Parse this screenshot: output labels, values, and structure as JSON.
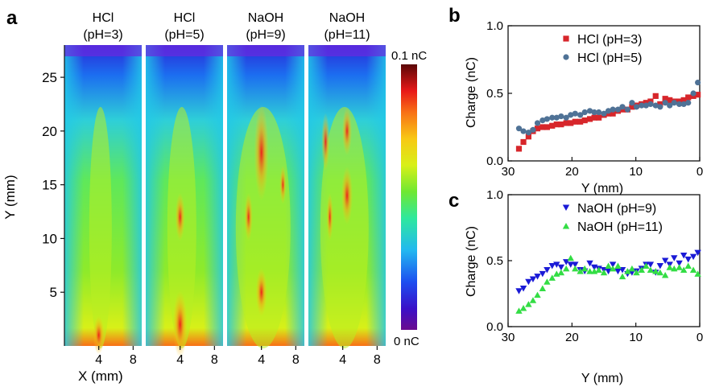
{
  "panel_labels": {
    "a": "a",
    "b": "b",
    "c": "c"
  },
  "panel_a": {
    "maps": [
      {
        "line1": "HCl",
        "line2": "(pH=3)"
      },
      {
        "line1": "HCl",
        "line2": "(pH=5)"
      },
      {
        "line1": "NaOH",
        "line2": "(pH=9)"
      },
      {
        "line1": "NaOH",
        "line2": "(pH=11)"
      }
    ],
    "ylabel": "Y (mm)",
    "xlabel": "X (mm)",
    "yticks": [
      5,
      10,
      15,
      20,
      25
    ],
    "xticks": [
      4,
      8
    ],
    "ylim": [
      0,
      28
    ],
    "xlim": [
      0,
      9
    ],
    "colorbar": {
      "max_label": "0.1 nC",
      "min_label": "0 nC",
      "range": [
        0,
        0.1
      ]
    }
  },
  "colors": {
    "hcl3": "#d7262b",
    "hcl5": "#4f7296",
    "naoh9": "#1a1ad6",
    "naoh11": "#33dd44"
  },
  "chart_data": [
    {
      "panel": "b",
      "type": "scatter",
      "xlabel": "Y (mm)",
      "ylabel": "Charge (nC)",
      "xlim": [
        30,
        0
      ],
      "ylim": [
        0,
        1.0
      ],
      "xticks": [
        30,
        20,
        10,
        0
      ],
      "yticks": [
        "0.0",
        "0.5",
        "1.0"
      ],
      "legend_position": "top-right",
      "series": [
        {
          "name": "HCl (pH=3)",
          "marker": "square",
          "color": "#d7262b",
          "x": [
            28.3,
            27.6,
            26.8,
            26.1,
            25.4,
            24.6,
            23.9,
            23.1,
            22.4,
            21.7,
            20.9,
            20.2,
            19.5,
            18.7,
            18.0,
            17.2,
            16.5,
            15.8,
            15.0,
            14.3,
            13.6,
            12.8,
            12.1,
            11.3,
            10.6,
            9.9,
            9.1,
            8.4,
            7.7,
            6.9,
            6.2,
            5.4,
            4.7,
            4.0,
            3.2,
            2.5,
            1.8,
            1.0,
            0.3
          ],
          "y": [
            0.09,
            0.14,
            0.18,
            0.22,
            0.24,
            0.25,
            0.25,
            0.26,
            0.27,
            0.27,
            0.28,
            0.28,
            0.29,
            0.29,
            0.3,
            0.31,
            0.32,
            0.32,
            0.34,
            0.35,
            0.35,
            0.37,
            0.38,
            0.38,
            0.4,
            0.41,
            0.42,
            0.43,
            0.44,
            0.48,
            0.42,
            0.46,
            0.45,
            0.44,
            0.44,
            0.45,
            0.47,
            0.48,
            0.49
          ]
        },
        {
          "name": "HCl (pH=5)",
          "marker": "circle",
          "color": "#4f7296",
          "x": [
            28.3,
            27.6,
            26.8,
            26.1,
            25.4,
            24.6,
            23.9,
            23.1,
            22.4,
            21.7,
            20.9,
            20.2,
            19.5,
            18.7,
            18.0,
            17.2,
            16.5,
            15.8,
            15.0,
            14.3,
            13.6,
            12.8,
            12.1,
            11.3,
            10.6,
            9.9,
            9.1,
            8.4,
            7.7,
            6.9,
            6.2,
            5.4,
            4.7,
            4.0,
            3.2,
            2.5,
            1.8,
            1.0,
            0.3
          ],
          "y": [
            0.24,
            0.22,
            0.21,
            0.23,
            0.28,
            0.3,
            0.31,
            0.32,
            0.32,
            0.33,
            0.32,
            0.34,
            0.35,
            0.34,
            0.36,
            0.37,
            0.36,
            0.36,
            0.35,
            0.37,
            0.38,
            0.38,
            0.4,
            0.38,
            0.43,
            0.4,
            0.41,
            0.41,
            0.42,
            0.41,
            0.4,
            0.43,
            0.41,
            0.43,
            0.42,
            0.42,
            0.43,
            0.5,
            0.58
          ]
        }
      ]
    },
    {
      "panel": "c",
      "type": "scatter",
      "xlabel": "Y (mm)",
      "ylabel": "Charge (nC)",
      "xlim": [
        30,
        0
      ],
      "ylim": [
        0,
        1.0
      ],
      "xticks": [
        30,
        20,
        10,
        0
      ],
      "yticks": [
        "0.0",
        "0.5",
        "1.0"
      ],
      "legend_position": "top-right",
      "series": [
        {
          "name": "NaOH (pH=9)",
          "marker": "triangle-down",
          "color": "#1a1ad6",
          "x": [
            28.3,
            27.6,
            26.8,
            26.1,
            25.4,
            24.6,
            23.9,
            23.1,
            22.4,
            21.7,
            20.9,
            20.2,
            19.5,
            18.7,
            18.0,
            17.2,
            16.5,
            15.8,
            15.0,
            14.3,
            13.6,
            12.8,
            12.1,
            11.3,
            10.6,
            9.9,
            9.1,
            8.4,
            7.7,
            6.9,
            6.2,
            5.4,
            4.7,
            4.0,
            3.2,
            2.5,
            1.8,
            1.0,
            0.3
          ],
          "y": [
            0.27,
            0.29,
            0.34,
            0.36,
            0.38,
            0.4,
            0.43,
            0.46,
            0.47,
            0.45,
            0.49,
            0.47,
            0.47,
            0.43,
            0.42,
            0.48,
            0.45,
            0.44,
            0.43,
            0.42,
            0.47,
            0.42,
            0.43,
            0.4,
            0.41,
            0.42,
            0.44,
            0.47,
            0.47,
            0.41,
            0.46,
            0.5,
            0.47,
            0.52,
            0.48,
            0.54,
            0.51,
            0.53,
            0.56
          ]
        },
        {
          "name": "NaOH (pH=11)",
          "marker": "triangle-up",
          "color": "#33dd44",
          "x": [
            28.3,
            27.6,
            26.8,
            26.1,
            25.4,
            24.6,
            23.9,
            23.1,
            22.4,
            21.7,
            20.9,
            20.2,
            19.5,
            18.7,
            18.0,
            17.2,
            16.5,
            15.8,
            15.0,
            14.3,
            13.6,
            12.8,
            12.1,
            11.3,
            10.6,
            9.9,
            9.1,
            8.4,
            7.7,
            6.9,
            6.2,
            5.4,
            4.7,
            4.0,
            3.2,
            2.5,
            1.8,
            1.0,
            0.3
          ],
          "y": [
            0.12,
            0.14,
            0.17,
            0.2,
            0.24,
            0.29,
            0.34,
            0.37,
            0.4,
            0.41,
            0.44,
            0.52,
            0.44,
            0.42,
            0.44,
            0.42,
            0.42,
            0.43,
            0.41,
            0.46,
            0.44,
            0.46,
            0.38,
            0.42,
            0.44,
            0.41,
            0.43,
            0.46,
            0.43,
            0.42,
            0.41,
            0.39,
            0.45,
            0.44,
            0.45,
            0.43,
            0.46,
            0.43,
            0.4
          ]
        }
      ]
    }
  ]
}
